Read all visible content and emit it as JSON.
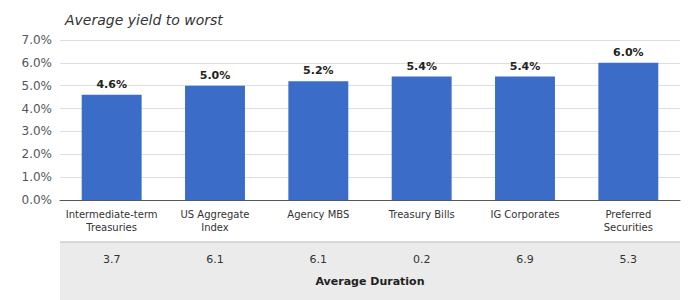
{
  "chart_data": {
    "type": "bar",
    "title": "Average yield to worst",
    "categories": [
      "Intermediate-term\nTreasuries",
      "US Aggregate\nIndex",
      "Agency MBS",
      "Treasury Bills",
      "IG Corporates",
      "Preferred\nSecurities"
    ],
    "values": [
      4.6,
      5.0,
      5.2,
      5.4,
      5.4,
      6.0
    ],
    "value_labels": [
      "4.6%",
      "5.0%",
      "5.2%",
      "5.4%",
      "5.4%",
      "6.0%"
    ],
    "data_labels": true,
    "color": "#3B6CC7",
    "ylim": [
      0,
      7.0
    ],
    "yticks": [
      {
        "value": 0.0,
        "label": "0.0%"
      },
      {
        "value": 1.0,
        "label": "1.0%"
      },
      {
        "value": 2.0,
        "label": "2.0%"
      },
      {
        "value": 3.0,
        "label": "3.0%"
      },
      {
        "value": 4.0,
        "label": "4.0%"
      },
      {
        "value": 5.0,
        "label": "5.0%"
      },
      {
        "value": 6.0,
        "label": "6.0%"
      },
      {
        "value": 7.0,
        "label": "7.0%"
      }
    ],
    "grid": true,
    "durations": [
      "3.7",
      "6.1",
      "6.1",
      "0.2",
      "6.9",
      "5.3"
    ],
    "xlabel": "Average Duration"
  }
}
